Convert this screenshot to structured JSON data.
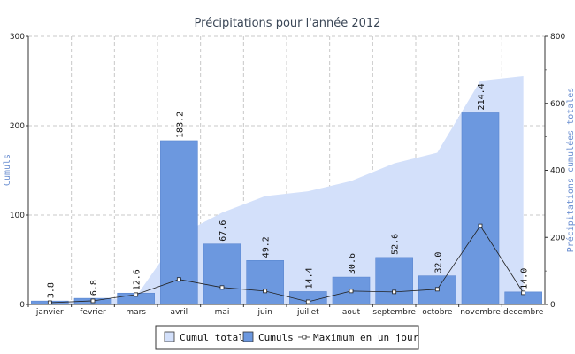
{
  "chart_data": {
    "type": "bar",
    "title": "Précipitations pour l'année 2012",
    "ylabel": "Cumuls",
    "y2label": "Précipitations cumulées totales",
    "ylim": [
      0,
      300
    ],
    "y2lim": [
      0,
      800
    ],
    "yticks": [
      "0",
      "100",
      "200",
      "300"
    ],
    "y2ticks": [
      "0",
      "200",
      "400",
      "600",
      "800"
    ],
    "grid": true,
    "legend_position": "bottom",
    "categories": [
      "janvier",
      "fevrier",
      "mars",
      "avril",
      "mai",
      "juin",
      "juillet",
      "aout",
      "septembre",
      "octobre",
      "novembre",
      "decembre"
    ],
    "series": [
      {
        "name": "Cumul total",
        "type": "area",
        "axis": "right",
        "color": "#d3e0fa",
        "values": [
          3.8,
          10.6,
          23.2,
          206.4,
          274.0,
          323.2,
          337.6,
          368.2,
          420.8,
          452.8,
          667.2,
          681.2
        ]
      },
      {
        "name": "Cumuls",
        "type": "bar",
        "axis": "left",
        "color": "#6c98df",
        "values": [
          3.8,
          6.8,
          12.6,
          183.2,
          67.6,
          49.2,
          14.4,
          30.6,
          52.6,
          32.0,
          214.4,
          14.0
        ],
        "labels": [
          "3.8",
          "6.8",
          "12.6",
          "183.2",
          "67.6",
          "49.2",
          "14.4",
          "30.6",
          "52.6",
          "32.0",
          "214.4",
          "14.0"
        ]
      },
      {
        "name": "Maximum en un jour",
        "type": "line",
        "axis": "left",
        "color": "#222222",
        "values": [
          2.0,
          4.0,
          11.0,
          28.0,
          19.0,
          15.0,
          3.0,
          15.0,
          14.0,
          17.0,
          88.0,
          13.0
        ]
      }
    ]
  }
}
